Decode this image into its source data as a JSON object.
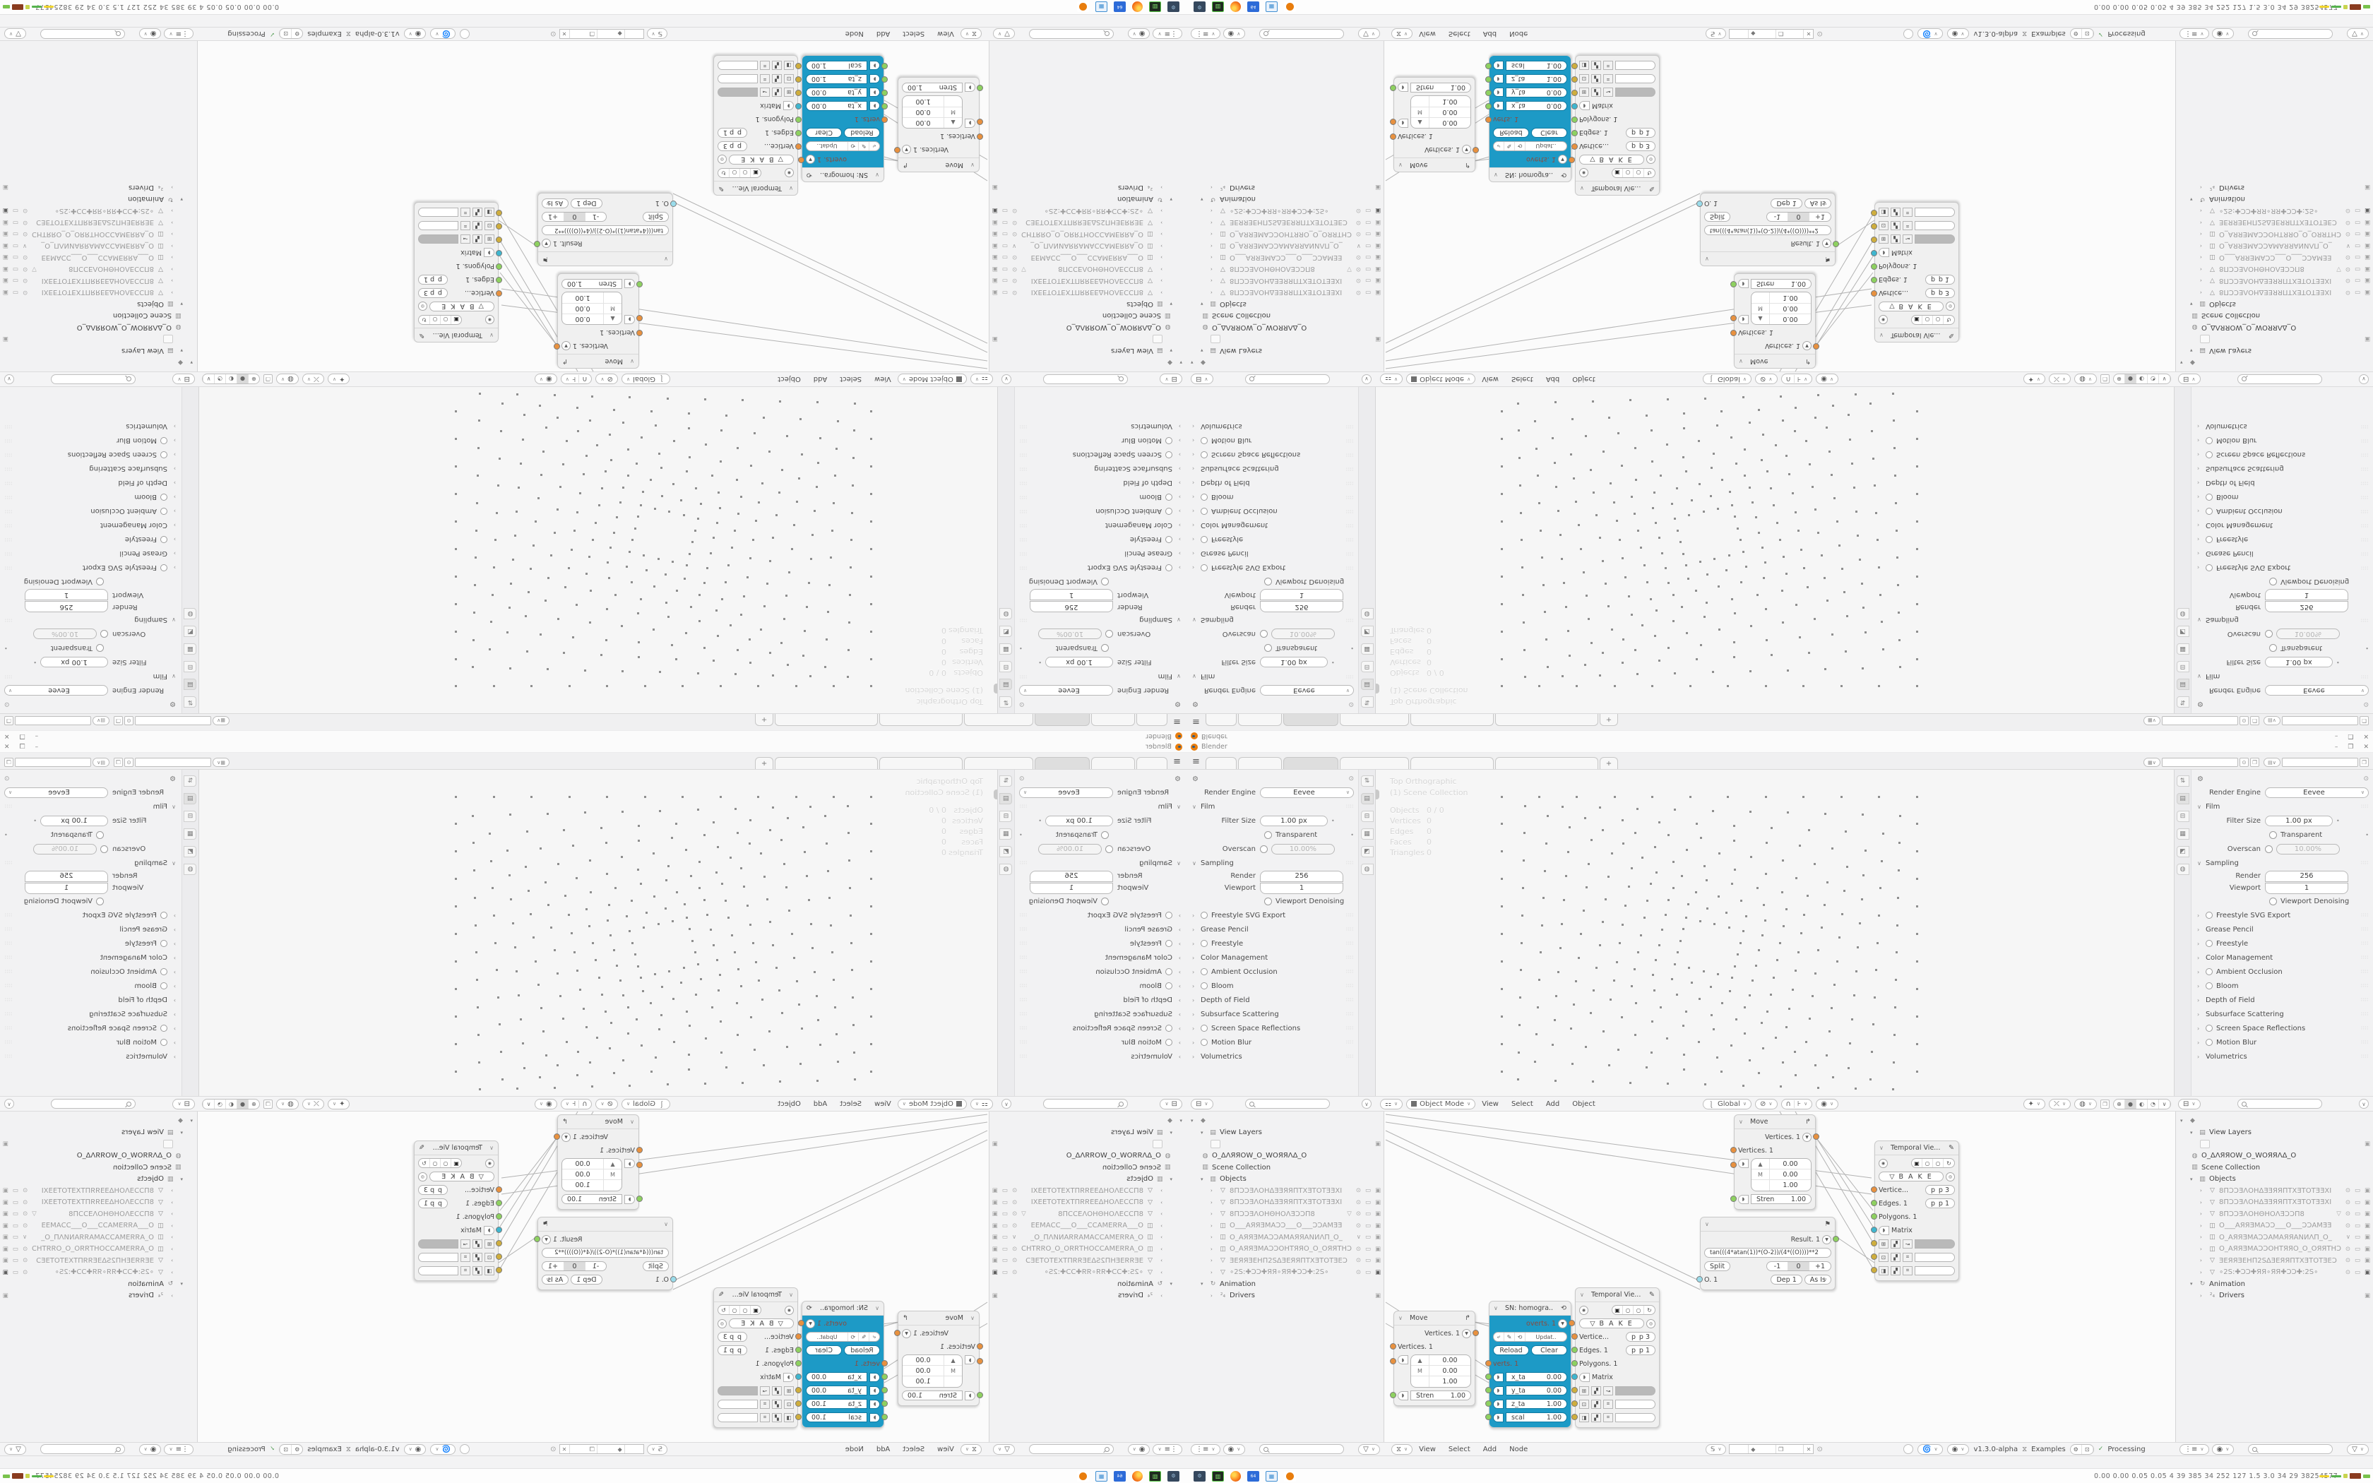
{
  "app": {
    "title": "Blender",
    "min": "–",
    "max": "❐",
    "close": "✕",
    "plus_tab": "+"
  },
  "properties": {
    "engine_label": "Render Engine",
    "engine_value": "Eevee",
    "film_label": "Film",
    "filter_size_label": "Filter Size",
    "filter_size_value": "1.00 px",
    "transparent_label": "Transparent",
    "overscan_label": "Overscan",
    "overscan_value": "10.00%",
    "sampling_label": "Sampling",
    "render_label": "Render",
    "render_value": "256",
    "viewport_label": "Viewport",
    "viewport_value": "1",
    "denoising_label": "Viewport Denoising",
    "sections": [
      {
        "label": "Freestyle SVG Export",
        "toggle": true
      },
      {
        "label": "Grease Pencil"
      },
      {
        "label": "Freestyle",
        "toggle": true
      },
      {
        "label": "Color Management"
      },
      {
        "label": "Ambient Occlusion",
        "toggle": true
      },
      {
        "label": "Bloom",
        "toggle": true
      },
      {
        "label": "Depth of Field"
      },
      {
        "label": "Subsurface Scattering"
      },
      {
        "label": "Screen Space Reflections",
        "toggle": true
      },
      {
        "label": "Motion Blur",
        "toggle": true
      },
      {
        "label": "Volumetrics"
      }
    ]
  },
  "viewport": {
    "overlay_title": "Top Orthographic",
    "overlay_subtitle": "(1) Scene Collection",
    "stats": [
      {
        "k": "Objects",
        "v": "0 / 0"
      },
      {
        "k": "Vertices",
        "v": "0"
      },
      {
        "k": "Edges",
        "v": "0"
      },
      {
        "k": "Faces",
        "v": "0"
      },
      {
        "k": "Triangles",
        "v": "0"
      }
    ],
    "mode": "Object Mode",
    "menus": [
      "View",
      "Select",
      "Add",
      "Object"
    ],
    "orientation": "Global"
  },
  "outliner": {
    "view_layers_label": "View Layers",
    "arrow_object": "O_ΔΛЯЯOW_O_WOЯЯΛΔ_O",
    "scene_collection_label": "Scene Collection",
    "objects_label": "Objects",
    "objects": [
      {
        "mesh": true,
        "camo": true,
        "name": "8ΠƆƆƎΛOHΔƎƎЯЯΠTXƎTOTƎƎXI",
        "eye": true
      },
      {
        "mesh": true,
        "camo": true,
        "name": "8ΠƆƆƎΛOHΔƎƎЯЯΠTXƎTOTƎƎXI",
        "eye": true
      },
      {
        "mesh": true,
        "camo": true,
        "name": "8ΠƆƆƎΛOHΘHOΛƎƆƆΠ8",
        "funnel": true,
        "eye": true
      },
      {
        "cam": true,
        "camo": true,
        "name": "O___AЯЯƎMAƆƆ___O___ƆƆAMƎƎ",
        "eye": true
      },
      {
        "cam": true,
        "camo": true,
        "name": "O_AЯЯƎMAƆƆAMAЯЯANИΛΠ_O_",
        "chev": true
      },
      {
        "cam": true,
        "camo": true,
        "name": "O_AЯЯƎMAƆƆOHTЯЯO_O_OЯЯTHƆ",
        "eye": true
      },
      {
        "mesh": true,
        "camo": true,
        "name": "ƎEЯЯƎEHΠ2SΔƎEЯЯΠTXƎTOTƎEƆ",
        "eye": true
      },
      {
        "mesh": true,
        "camfull": true,
        "name": "∘2S:✚ƆƆ✚ЯЯ∘ЯЯ✚ƆƆ✚:2S∘",
        "eye": true
      }
    ],
    "animation_label": "Animation",
    "drivers_label": "Drivers"
  },
  "node_editor": {
    "menus": [
      "View",
      "Select",
      "Add",
      "Node"
    ],
    "version": "v1.3.0-alpha",
    "examples_label": "Examples",
    "processing_label": "Processing",
    "tree_name": "",
    "move": {
      "title": "Move",
      "output": "Vertices. 1",
      "input": "Vertices. 1",
      "vec": [
        {
          "k": "▲",
          "v": "0.00"
        },
        {
          "k": "M",
          "v": "0.00"
        },
        {
          "k": "",
          "v": "1.00"
        }
      ],
      "stren_label": "Stren",
      "stren_value": "1.00"
    },
    "sn": {
      "title": "SN: homogra..",
      "output": "overts. 1",
      "update_label": "Updat..",
      "reload_label": "Reload",
      "clear_label": "Clear",
      "input": "verts. 1",
      "params": [
        {
          "k": "x_ta",
          "v": "0.00"
        },
        {
          "k": "y_ta",
          "v": "0.00"
        },
        {
          "k": "z_ta",
          "v": "1.00"
        },
        {
          "k": "scal",
          "v": "1.00"
        }
      ]
    },
    "formula": {
      "result": "Result. 1",
      "expression": "tan(((4*atan(1))*(O-2))/(4*((O))))**2",
      "split_label": "Split",
      "split_options": [
        "-1",
        "0",
        "+1"
      ],
      "input": "O. 1",
      "depth_label": "Dep",
      "depth_value": "1",
      "mode_value": "As Is"
    },
    "temporal": {
      "title": "Temporal Vie...",
      "bake_label": "B A K E",
      "sockets": [
        {
          "k": "Vertice...",
          "v": "p  3",
          "c": "orange"
        },
        {
          "k": "Edges. 1",
          "v": "p  1",
          "c": "green"
        },
        {
          "k": "Polygons. 1",
          "v": "",
          "c": "green"
        },
        {
          "k": "Matrix",
          "v": "",
          "c": "cyan",
          "btn": true
        }
      ]
    }
  },
  "status": {
    "stats_line": "0.00 0.00 0.05 0.05    4    39    385    34    252    127    1.5    3.0    34    29    38254577"
  },
  "taskbar": {
    "apps": [
      "system-monitor",
      "package-manager",
      "firefox",
      "disk-imager",
      "image-viewer",
      "blender"
    ]
  },
  "colors": {
    "sverchok_blue": "#1d9ac6",
    "socket_orange": "#e8913f",
    "socket_green": "#8ed160",
    "socket_cyan": "#3fb6cf",
    "socket_yellow": "#cfae3d",
    "socket_blue": "#9adceb",
    "blender_orange": "#e87d0d"
  }
}
